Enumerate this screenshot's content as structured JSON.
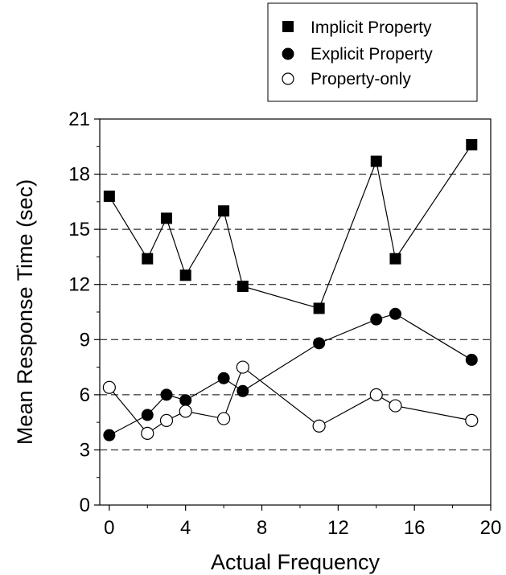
{
  "chart_data": {
    "type": "line",
    "title": "",
    "xlabel": "Actual Frequency",
    "ylabel": "Mean Response Time (sec)",
    "xlim": [
      -0.5,
      20
    ],
    "ylim": [
      0,
      21
    ],
    "xticks": [
      0,
      4,
      8,
      12,
      16,
      20
    ],
    "yticks": [
      0,
      3,
      6,
      9,
      12,
      15,
      18,
      21
    ],
    "gridlines": {
      "axis": "y",
      "style": "dashed",
      "values": [
        3,
        6,
        9,
        12,
        15,
        18
      ]
    },
    "legend": {
      "placement": "top-right"
    },
    "series": [
      {
        "name": "Implicit Property",
        "marker": "filled-square",
        "x": [
          0,
          2,
          3,
          4,
          6,
          7,
          11,
          14,
          15,
          19
        ],
        "y": [
          16.8,
          13.4,
          15.6,
          12.5,
          16.0,
          11.9,
          10.7,
          18.7,
          13.4,
          19.6
        ]
      },
      {
        "name": "Explicit Property",
        "marker": "filled-circle",
        "x": [
          0,
          2,
          3,
          4,
          6,
          7,
          11,
          14,
          15,
          19
        ],
        "y": [
          3.8,
          4.9,
          6.0,
          5.7,
          6.9,
          6.2,
          8.8,
          10.1,
          10.4,
          7.9
        ]
      },
      {
        "name": "Property-only",
        "marker": "open-circle",
        "x": [
          0,
          2,
          3,
          4,
          6,
          7,
          11,
          14,
          15,
          19
        ],
        "y": [
          6.4,
          3.9,
          4.6,
          5.1,
          4.7,
          7.5,
          4.3,
          6.0,
          5.4,
          4.6
        ]
      }
    ]
  }
}
